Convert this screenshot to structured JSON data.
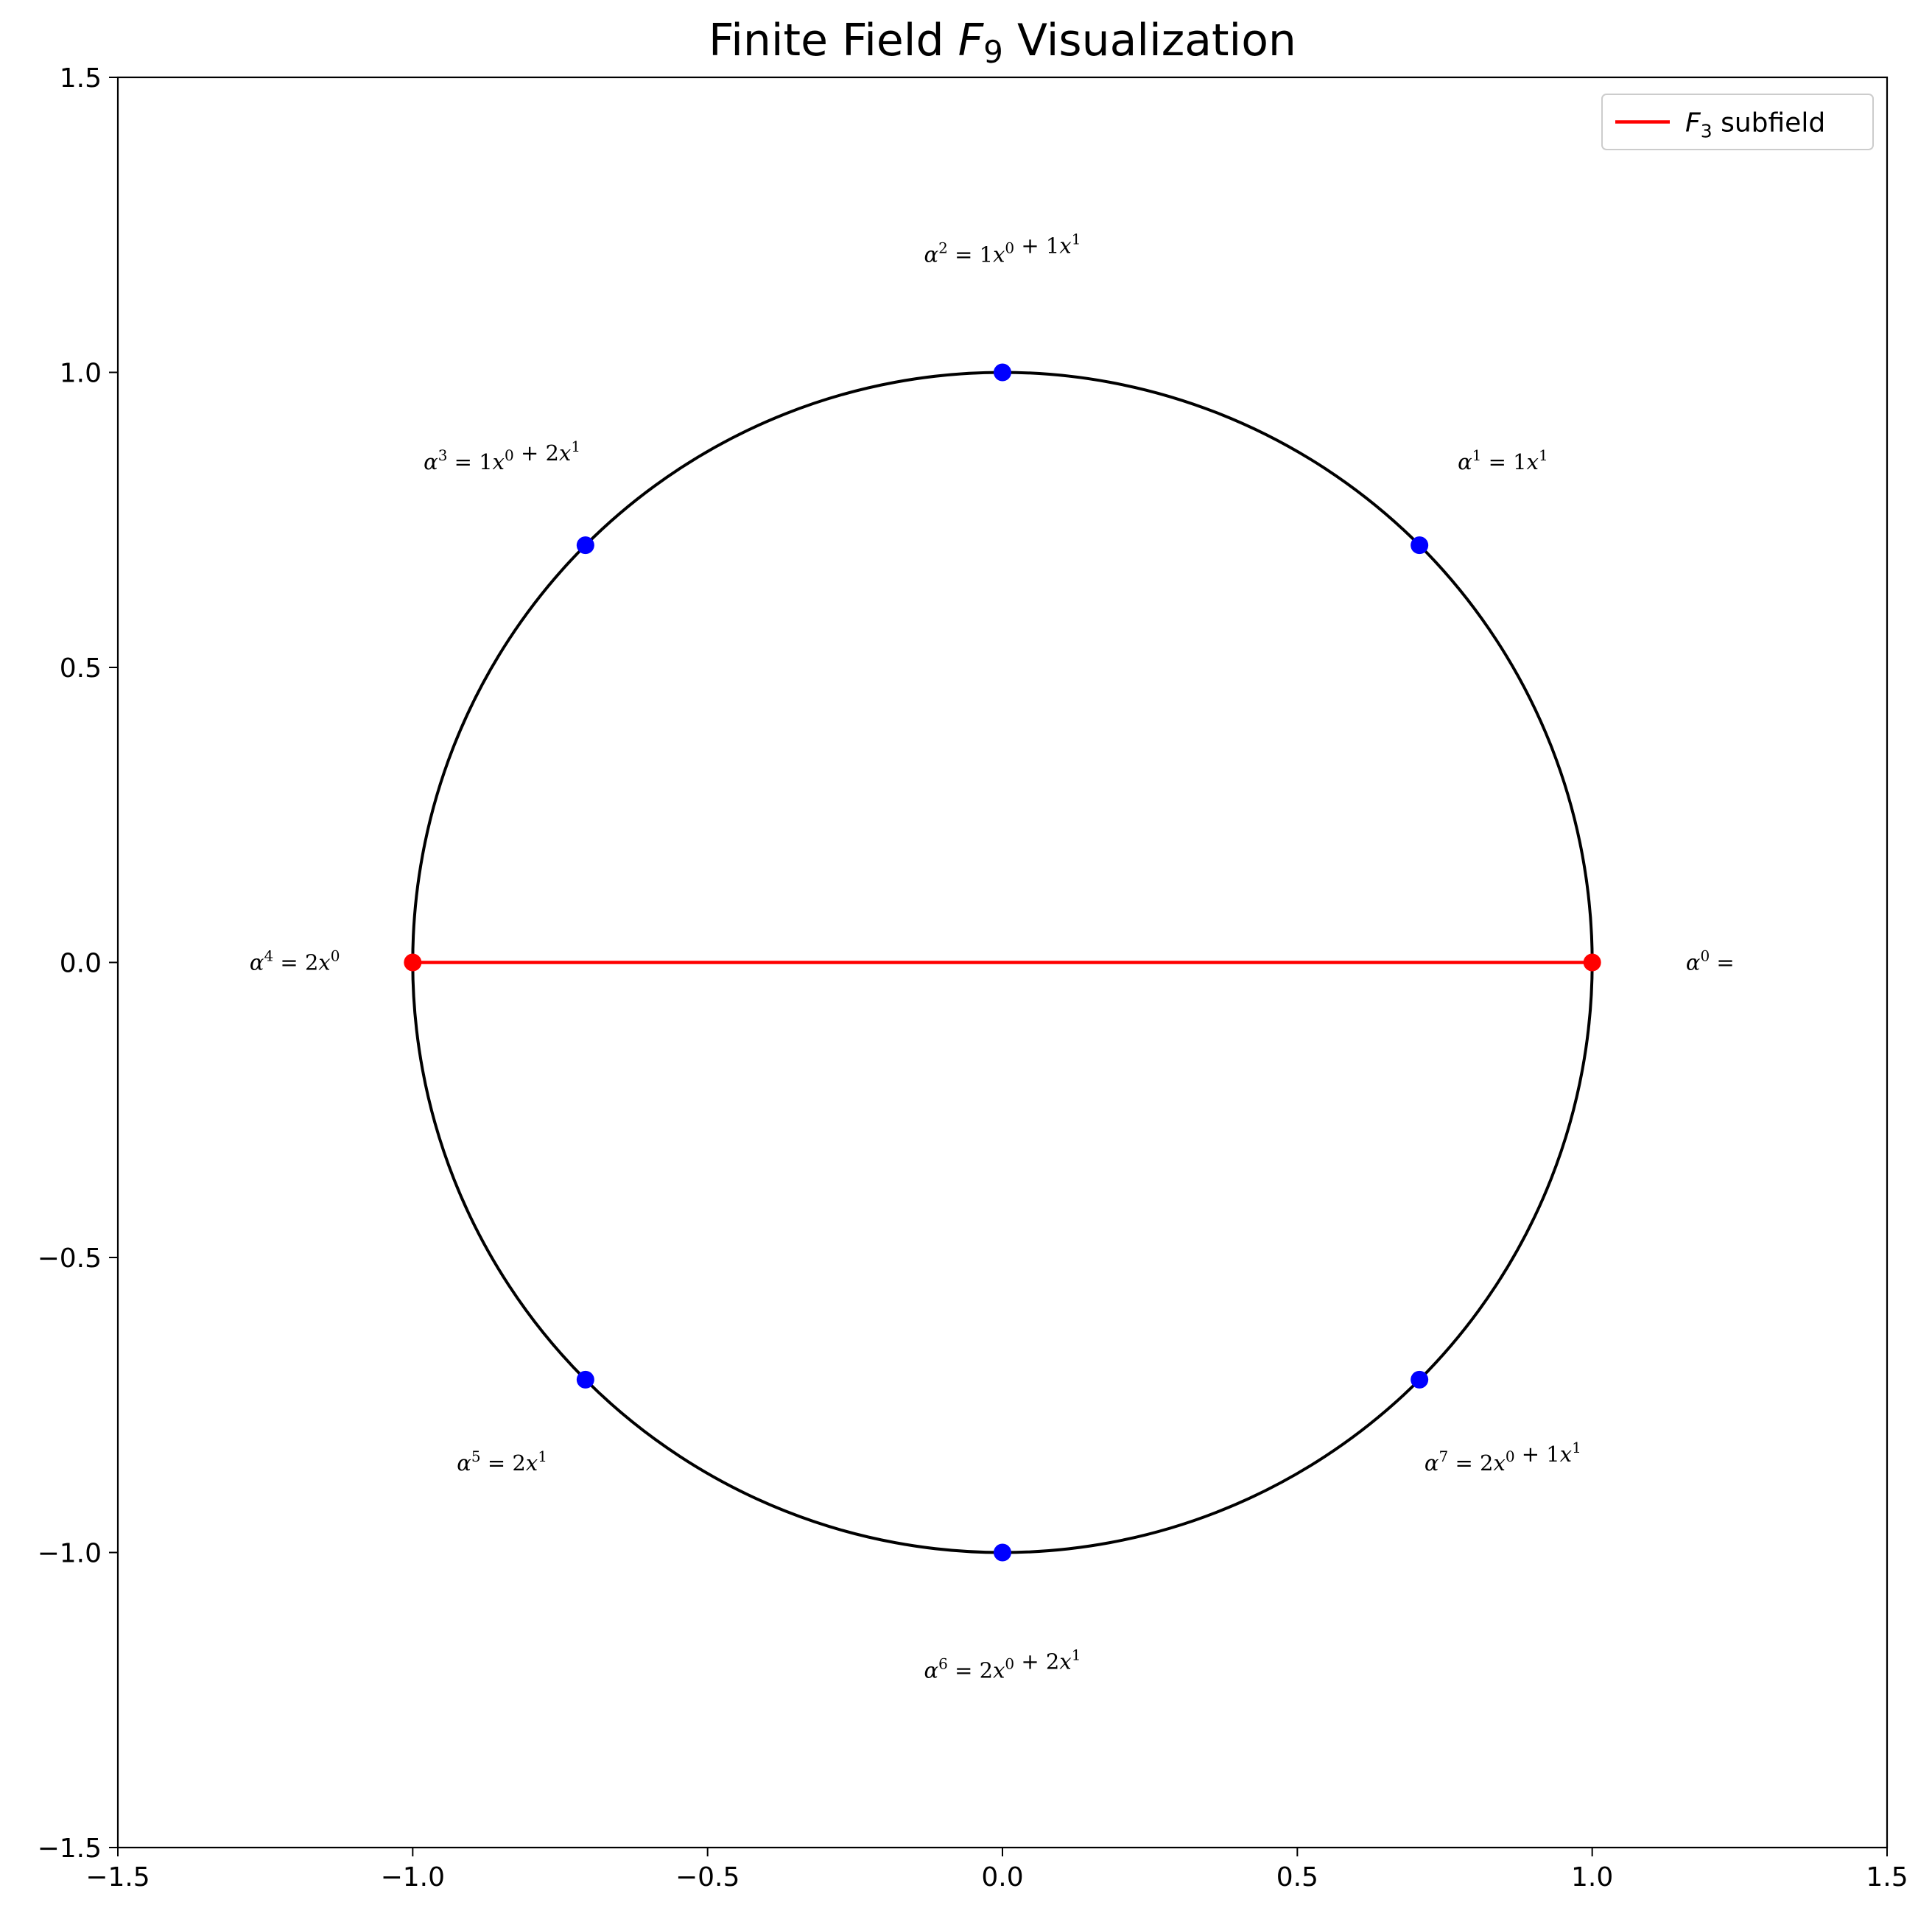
{
  "chart_data": {
    "type": "scatter",
    "title_parts": [
      "Finite Field ",
      "F",
      "9",
      " Visualization"
    ],
    "xlim": [
      -1.5,
      1.5
    ],
    "ylim": [
      -1.5,
      1.5
    ],
    "xticks": [
      -1.5,
      -1.0,
      -0.5,
      0.0,
      0.5,
      1.0,
      1.5
    ],
    "yticks": [
      -1.5,
      -1.0,
      -0.5,
      0.0,
      0.5,
      1.0,
      1.5
    ],
    "xtick_labels": [
      "−1.5",
      "−1.0",
      "−0.5",
      "0.0",
      "0.5",
      "1.0",
      "1.5"
    ],
    "ytick_labels": [
      "−1.5",
      "−1.0",
      "−0.5",
      "0.0",
      "0.5",
      "1.0",
      "1.5"
    ],
    "grid": false,
    "circle": {
      "center": [
        0,
        0
      ],
      "radius": 1,
      "color": "#000000"
    },
    "points": [
      {
        "exponent": "0",
        "x": 1.0,
        "y": 0.0,
        "color": "#ff0000",
        "terms": []
      },
      {
        "exponent": "1",
        "x": 0.7071,
        "y": 0.7071,
        "color": "#0000ff",
        "terms": [
          [
            "1",
            "1"
          ]
        ]
      },
      {
        "exponent": "2",
        "x": 0.0,
        "y": 1.0,
        "color": "#0000ff",
        "terms": [
          [
            "1",
            "0"
          ],
          [
            "1",
            "1"
          ]
        ]
      },
      {
        "exponent": "3",
        "x": -0.7071,
        "y": 0.7071,
        "color": "#0000ff",
        "terms": [
          [
            "1",
            "0"
          ],
          [
            "2",
            "1"
          ]
        ]
      },
      {
        "exponent": "4",
        "x": -1.0,
        "y": 0.0,
        "color": "#ff0000",
        "terms": [
          [
            "2",
            "0"
          ]
        ]
      },
      {
        "exponent": "5",
        "x": -0.7071,
        "y": -0.7071,
        "color": "#0000ff",
        "terms": [
          [
            "2",
            "1"
          ]
        ]
      },
      {
        "exponent": "6",
        "x": 0.0,
        "y": -1.0,
        "color": "#0000ff",
        "terms": [
          [
            "2",
            "0"
          ],
          [
            "2",
            "1"
          ]
        ]
      },
      {
        "exponent": "7",
        "x": 0.7071,
        "y": -0.7071,
        "color": "#0000ff",
        "terms": [
          [
            "2",
            "0"
          ],
          [
            "1",
            "1"
          ]
        ]
      }
    ],
    "subfield_line": {
      "x": [
        -1.0,
        1.0
      ],
      "y": [
        0.0,
        0.0
      ],
      "color": "#ff0000"
    },
    "legend": {
      "position": "upper right",
      "entries": [
        {
          "label_parts": [
            "F",
            "3",
            " subfield"
          ],
          "color": "#ff0000"
        }
      ]
    }
  }
}
